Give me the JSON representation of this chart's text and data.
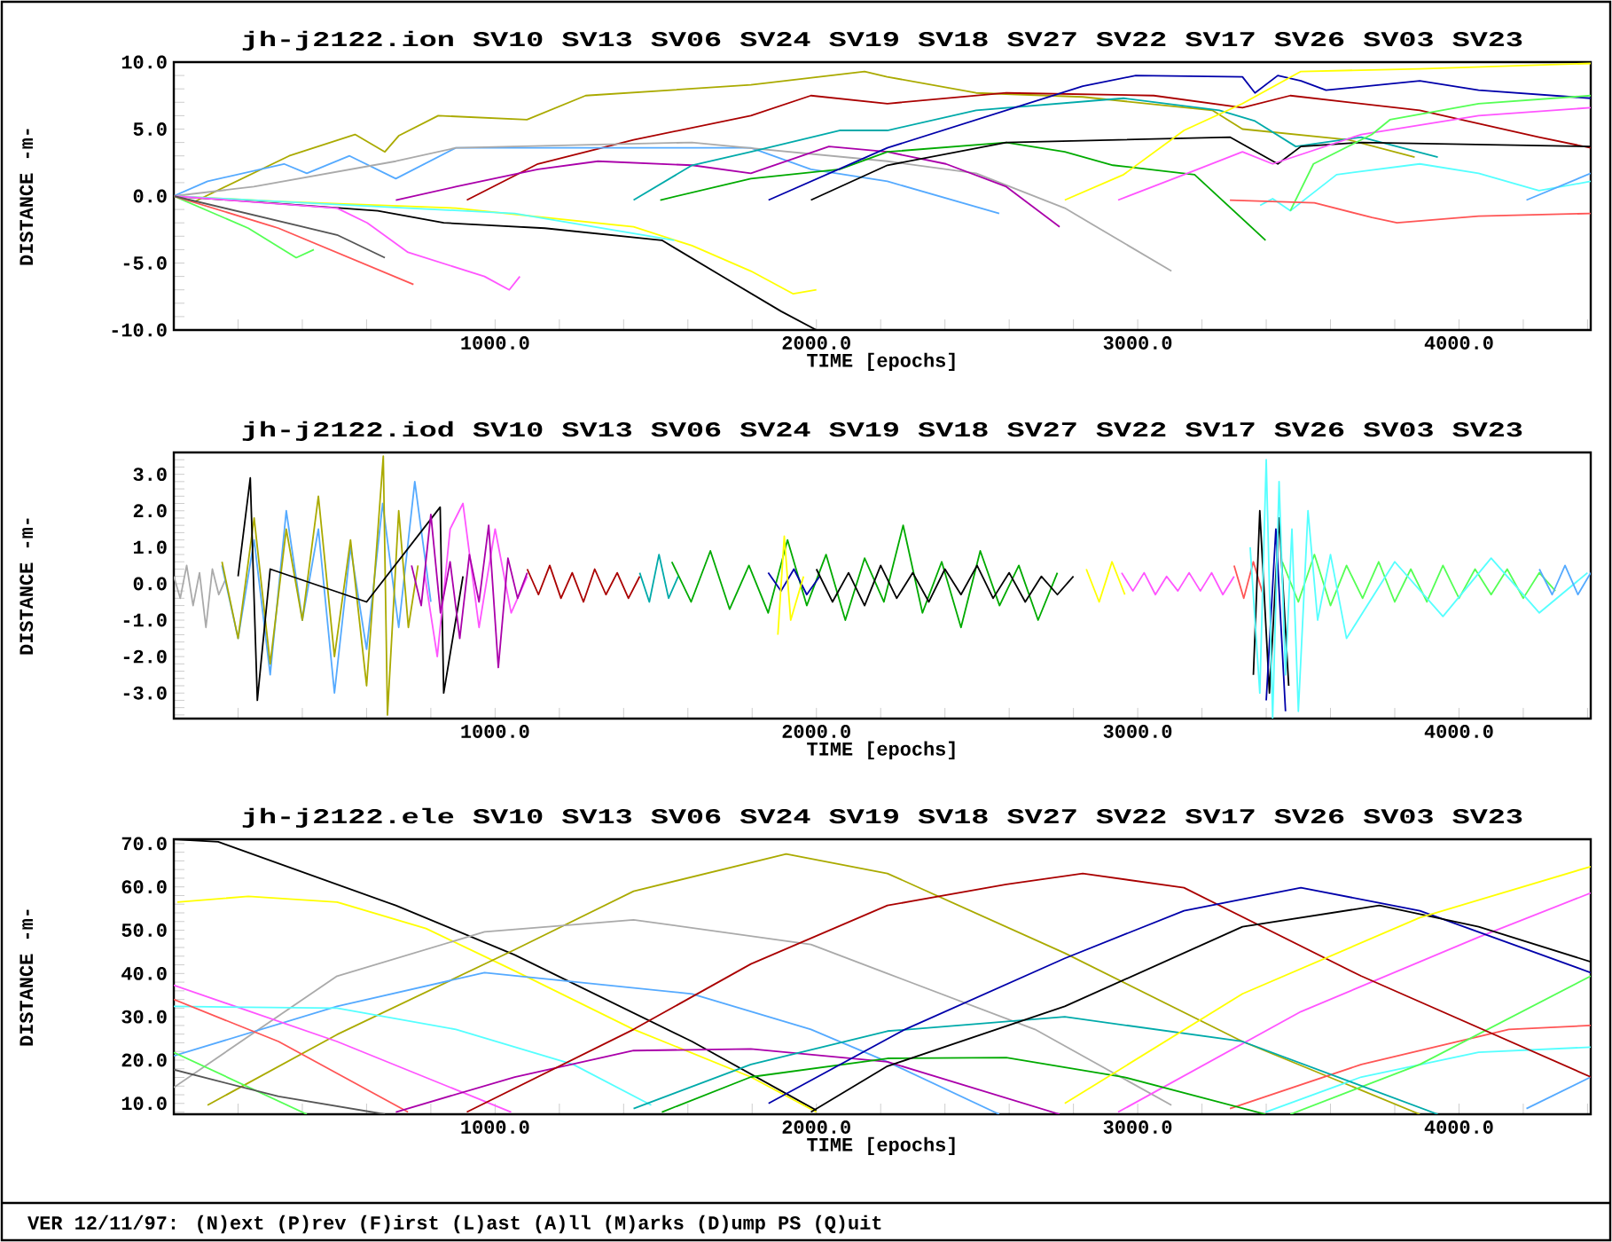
{
  "chart_data": [
    {
      "type": "line",
      "title": "jh-j2122.ion SV10 SV13 SV06 SV24 SV19 SV18 SV27 SV22 SV17 SV26 SV03 SV23",
      "xlabel": "TIME [epochs]",
      "ylabel": "DISTANCE -m-",
      "xlim": [
        0,
        4410
      ],
      "ylim": [
        -10,
        10
      ],
      "xticks": [
        {
          "value": 200,
          "label": null
        },
        {
          "value": 400,
          "label": null
        },
        {
          "value": 600,
          "label": null
        },
        {
          "value": 800,
          "label": null
        },
        {
          "value": 1000,
          "label": "1000.0"
        },
        {
          "value": 1200,
          "label": null
        },
        {
          "value": 1400,
          "label": null
        },
        {
          "value": 1600,
          "label": null
        },
        {
          "value": 1800,
          "label": null
        },
        {
          "value": 2000,
          "label": "2000.0"
        },
        {
          "value": 2200,
          "label": null
        },
        {
          "value": 2400,
          "label": null
        },
        {
          "value": 2600,
          "label": null
        },
        {
          "value": 2800,
          "label": null
        },
        {
          "value": 3000,
          "label": "3000.0"
        },
        {
          "value": 3200,
          "label": null
        },
        {
          "value": 3400,
          "label": null
        },
        {
          "value": 3600,
          "label": null
        },
        {
          "value": 3800,
          "label": null
        },
        {
          "value": 4000,
          "label": "4000.0"
        },
        {
          "value": 4200,
          "label": null
        },
        {
          "value": 4400,
          "label": null
        }
      ],
      "yticks": [
        {
          "value": -10,
          "label": "-10.0"
        },
        {
          "value": -9,
          "label": null
        },
        {
          "value": -8,
          "label": null
        },
        {
          "value": -7,
          "label": null
        },
        {
          "value": -6,
          "label": null
        },
        {
          "value": -5,
          "label": "-5.0"
        },
        {
          "value": -4,
          "label": null
        },
        {
          "value": -3,
          "label": null
        },
        {
          "value": -2,
          "label": null
        },
        {
          "value": -1,
          "label": null
        },
        {
          "value": 0,
          "label": "0.0"
        },
        {
          "value": 1,
          "label": null
        },
        {
          "value": 2,
          "label": null
        },
        {
          "value": 3,
          "label": null
        },
        {
          "value": 4,
          "label": null
        },
        {
          "value": 5,
          "label": "5.0"
        },
        {
          "value": 6,
          "label": null
        },
        {
          "value": 7,
          "label": null
        },
        {
          "value": 8,
          "label": null
        },
        {
          "value": 9,
          "label": null
        },
        {
          "value": 10,
          "label": "10.0"
        }
      ],
      "series": [
        {
          "color": "#aaaa00",
          "x": [
            0,
            66,
            359,
            564,
            657,
            700,
            823,
            1099,
            1282,
            1796,
            2150,
            2220,
            2497,
            2829,
            3232,
            3326,
            3657,
            3862
          ],
          "values": [
            0,
            -0.4,
            3.0,
            4.6,
            3.3,
            4.5,
            6.0,
            5.7,
            7.5,
            8.3,
            9.3,
            8.9,
            7.7,
            7.4,
            6.4,
            5.0,
            4.2,
            2.9
          ]
        },
        {
          "color": "#aa0000",
          "x": [
            912,
            1133,
            1431,
            1796,
            1983,
            2221,
            2591,
            3050,
            3326,
            3475,
            3878,
            4249,
            4410
          ],
          "values": [
            -0.3,
            2.4,
            4.2,
            6.0,
            7.5,
            6.9,
            7.7,
            7.5,
            6.6,
            7.5,
            6.4,
            4.4,
            3.6
          ]
        },
        {
          "color": "#55aaff",
          "x": [
            0,
            105,
            343,
            414,
            547,
            691,
            878,
            1796,
            1983,
            2221,
            2569
          ],
          "values": [
            0,
            1.1,
            2.4,
            1.7,
            3.0,
            1.3,
            3.6,
            3.6,
            2.0,
            1.1,
            -1.3
          ]
        },
        {
          "color": "#aaaaaa",
          "x": [
            0,
            249,
            691,
            878,
            1613,
            2221,
            2497,
            2773,
            3105
          ],
          "values": [
            0,
            0.7,
            2.6,
            3.6,
            4.0,
            2.6,
            1.7,
            -0.9,
            -5.6
          ]
        },
        {
          "color": "#aa00aa",
          "x": [
            691,
            878,
            1133,
            1320,
            1613,
            1796,
            2039,
            2221,
            2403,
            2591,
            2757
          ],
          "values": [
            -0.3,
            0.7,
            2.0,
            2.6,
            2.3,
            1.7,
            3.7,
            3.3,
            2.4,
            0.7,
            -2.3
          ]
        },
        {
          "color": "#00aaaa",
          "x": [
            1431,
            1613,
            1796,
            2072,
            2221,
            2497,
            2956,
            3254,
            3365,
            3492,
            3696,
            3934
          ],
          "values": [
            -0.3,
            2.3,
            3.3,
            4.9,
            4.9,
            6.4,
            7.3,
            6.4,
            5.6,
            3.7,
            4.4,
            2.9
          ]
        },
        {
          "color": "#00aa00",
          "x": [
            1514,
            1796,
            2072,
            2221,
            2591,
            2773,
            2923,
            3177,
            3398
          ],
          "values": [
            -0.3,
            1.3,
            2.0,
            3.3,
            4.0,
            3.3,
            2.3,
            1.6,
            -3.3
          ]
        },
        {
          "color": "#0000aa",
          "x": [
            1851,
            2221,
            2829,
            2994,
            3326,
            3365,
            3436,
            3508,
            3586,
            3878,
            4061,
            4410
          ],
          "values": [
            -0.3,
            3.6,
            8.2,
            9.0,
            8.9,
            7.7,
            9.0,
            8.6,
            7.9,
            8.6,
            7.9,
            7.3
          ]
        },
        {
          "color": "#000000",
          "x": [
            0,
            635,
            840,
            1155,
            1519,
            1707,
            1890,
            2000
          ],
          "values": [
            0,
            -1.1,
            -2.0,
            -2.4,
            -3.3,
            -6.0,
            -8.6,
            -10.0
          ]
        },
        {
          "color": "#000000",
          "x": [
            1983,
            2221,
            2591,
            3287,
            3436,
            3508,
            3696,
            4410
          ],
          "values": [
            -0.3,
            2.3,
            4.0,
            4.4,
            2.4,
            3.7,
            4.0,
            3.7
          ]
        },
        {
          "color": "#ffff00",
          "x": [
            0,
            326,
            878,
            1431,
            1613,
            1796,
            1928,
            2000
          ],
          "values": [
            0,
            -0.4,
            -0.9,
            -2.3,
            -3.7,
            -5.6,
            -7.3,
            -7.0
          ]
        },
        {
          "color": "#ffff00",
          "x": [
            2773,
            2956,
            3144,
            3326,
            3508,
            3878,
            4410
          ],
          "values": [
            -0.3,
            1.6,
            4.9,
            6.9,
            9.3,
            9.5,
            9.9
          ]
        },
        {
          "color": "#55ffff",
          "x": [
            0,
            326,
            1061,
            1558
          ],
          "values": [
            0,
            -0.4,
            -1.3,
            -3.3
          ]
        },
        {
          "color": "#55ffff",
          "x": [
            3381,
            3420,
            3475,
            3619,
            3878,
            4061,
            4249,
            4410
          ],
          "values": [
            -0.7,
            -0.2,
            -1.1,
            1.6,
            2.4,
            1.7,
            0.4,
            1.1
          ]
        },
        {
          "color": "#ff55ff",
          "x": [
            0,
            508,
            602,
            729,
            967,
            1044,
            1077
          ],
          "values": [
            0,
            -0.9,
            -2.0,
            -4.2,
            -6.0,
            -7.0,
            -6.0
          ]
        },
        {
          "color": "#ff55ff",
          "x": [
            2939,
            3144,
            3326,
            3420,
            3696,
            4061,
            4410
          ],
          "values": [
            -0.3,
            1.6,
            3.3,
            2.4,
            4.6,
            6.0,
            6.6
          ]
        },
        {
          "color": "#55ff55",
          "x": [
            0,
            232,
            381,
            436
          ],
          "values": [
            0,
            -2.4,
            -4.6,
            -4.0
          ]
        },
        {
          "color": "#55ff55",
          "x": [
            3475,
            3547,
            3729,
            3785,
            4061,
            4410
          ],
          "values": [
            -1.1,
            2.4,
            4.6,
            5.7,
            6.9,
            7.5
          ]
        },
        {
          "color": "#ff5555",
          "x": [
            0,
            326,
            746
          ],
          "values": [
            0,
            -2.4,
            -6.6
          ]
        },
        {
          "color": "#ff5555",
          "x": [
            3287,
            3550,
            3729,
            3807,
            4061,
            4410
          ],
          "values": [
            -0.3,
            -0.5,
            -1.6,
            -2.0,
            -1.5,
            -1.3
          ]
        },
        {
          "color": "#555555",
          "x": [
            0,
            508,
            657
          ],
          "values": [
            0,
            -2.9,
            -4.6
          ]
        },
        {
          "color": "#55aaff",
          "x": [
            4210,
            4410
          ],
          "values": [
            -0.3,
            1.7
          ]
        }
      ]
    },
    {
      "type": "line",
      "title": "jh-j2122.iod SV10 SV13 SV06 SV24 SV19 SV18 SV27 SV22 SV17 SV26 SV03 SV23",
      "xlabel": "TIME [epochs]",
      "ylabel": "DISTANCE -m-",
      "xlim": [
        0,
        4410
      ],
      "ylim": [
        -3.7,
        3.6
      ],
      "xticks": [
        {
          "value": 200,
          "label": null
        },
        {
          "value": 400,
          "label": null
        },
        {
          "value": 600,
          "label": null
        },
        {
          "value": 800,
          "label": null
        },
        {
          "value": 1000,
          "label": "1000.0"
        },
        {
          "value": 1200,
          "label": null
        },
        {
          "value": 1400,
          "label": null
        },
        {
          "value": 1600,
          "label": null
        },
        {
          "value": 1800,
          "label": null
        },
        {
          "value": 2000,
          "label": "2000.0"
        },
        {
          "value": 2200,
          "label": null
        },
        {
          "value": 2400,
          "label": null
        },
        {
          "value": 2600,
          "label": null
        },
        {
          "value": 2800,
          "label": null
        },
        {
          "value": 3000,
          "label": "3000.0"
        },
        {
          "value": 3200,
          "label": null
        },
        {
          "value": 3400,
          "label": null
        },
        {
          "value": 3600,
          "label": null
        },
        {
          "value": 3800,
          "label": null
        },
        {
          "value": 4000,
          "label": "4000.0"
        },
        {
          "value": 4200,
          "label": null
        },
        {
          "value": 4400,
          "label": null
        }
      ],
      "yticks": [
        {
          "value": -3.6,
          "label": null
        },
        {
          "value": -3.4,
          "label": null
        },
        {
          "value": -3.2,
          "label": null
        },
        {
          "value": -3.0,
          "label": "-3.0"
        },
        {
          "value": -2.8,
          "label": null
        },
        {
          "value": -2.6,
          "label": null
        },
        {
          "value": -2.4,
          "label": null
        },
        {
          "value": -2.2,
          "label": null
        },
        {
          "value": -2.0,
          "label": "-2.0"
        },
        {
          "value": -1.8,
          "label": null
        },
        {
          "value": -1.6,
          "label": null
        },
        {
          "value": -1.4,
          "label": null
        },
        {
          "value": -1.2,
          "label": null
        },
        {
          "value": -1.0,
          "label": "-1.0"
        },
        {
          "value": -0.8,
          "label": null
        },
        {
          "value": -0.6,
          "label": null
        },
        {
          "value": -0.4,
          "label": null
        },
        {
          "value": -0.2,
          "label": null
        },
        {
          "value": 0,
          "label": "0.0"
        },
        {
          "value": 0.2,
          "label": null
        },
        {
          "value": 0.4,
          "label": null
        },
        {
          "value": 0.6,
          "label": null
        },
        {
          "value": 0.8,
          "label": null
        },
        {
          "value": 1.0,
          "label": "1.0"
        },
        {
          "value": 1.2,
          "label": null
        },
        {
          "value": 1.4,
          "label": null
        },
        {
          "value": 1.6,
          "label": null
        },
        {
          "value": 1.8,
          "label": null
        },
        {
          "value": 2.0,
          "label": "2.0"
        },
        {
          "value": 2.2,
          "label": null
        },
        {
          "value": 2.4,
          "label": null
        },
        {
          "value": 2.6,
          "label": null
        },
        {
          "value": 2.8,
          "label": null
        },
        {
          "value": 3.0,
          "label": "3.0"
        },
        {
          "value": 3.2,
          "label": null
        },
        {
          "value": 3.4,
          "label": null
        },
        {
          "value": 3.6,
          "label": null
        }
      ],
      "series": [
        {
          "color": "#aaaaaa",
          "x": [
            0,
            20,
            40,
            60,
            80,
            100,
            120,
            140,
            160
          ],
          "values": [
            0.2,
            -0.4,
            0.5,
            -0.6,
            0.3,
            -1.2,
            0.4,
            -0.3,
            0.1
          ]
        },
        {
          "color": "#55aaff",
          "x": [
            150,
            200,
            250,
            300,
            350,
            400,
            450,
            500,
            550,
            600,
            650,
            700,
            750,
            800
          ],
          "values": [
            0.5,
            -1.5,
            1.2,
            -2.5,
            2.0,
            -1.0,
            1.5,
            -3.0,
            1.0,
            -1.8,
            2.2,
            -1.2,
            2.8,
            -0.5
          ]
        },
        {
          "color": "#aaaa00",
          "x": [
            150,
            200,
            250,
            300,
            350,
            400,
            450,
            500,
            550,
            600,
            652,
            665,
            700,
            730,
            760
          ],
          "values": [
            0.6,
            -1.5,
            1.8,
            -2.2,
            1.5,
            -1.0,
            2.4,
            -2.0,
            1.2,
            -2.8,
            3.5,
            -3.6,
            2.0,
            -1.2,
            0.5
          ]
        },
        {
          "color": "#000000",
          "x": [
            200,
            238,
            260,
            300,
            600,
            829,
            840,
            900
          ],
          "values": [
            0.2,
            2.9,
            -3.2,
            0.4,
            -0.5,
            2.1,
            -3.0,
            0.2
          ]
        },
        {
          "color": "#ff55ff",
          "x": [
            780,
            820,
            860,
            900,
            950,
            1000,
            1050,
            1100
          ],
          "values": [
            0.3,
            -2.0,
            1.5,
            2.2,
            -1.2,
            1.5,
            -0.8,
            0.2
          ]
        },
        {
          "color": "#aa00aa",
          "x": [
            740,
            770,
            800,
            830,
            860,
            890,
            920,
            950,
            980,
            1010,
            1040,
            1070,
            1100
          ],
          "values": [
            0.5,
            -0.6,
            1.9,
            -0.8,
            0.6,
            -1.5,
            0.8,
            -0.5,
            1.6,
            -2.3,
            0.7,
            -0.4,
            0.3
          ]
        },
        {
          "color": "#aa0000",
          "x": [
            1100,
            1135,
            1170,
            1205,
            1240,
            1275,
            1310,
            1345,
            1380,
            1415,
            1450
          ],
          "values": [
            0.4,
            -0.3,
            0.5,
            -0.4,
            0.3,
            -0.5,
            0.4,
            -0.3,
            0.3,
            -0.4,
            0.2
          ]
        },
        {
          "color": "#00aaaa",
          "x": [
            1450,
            1480,
            1510,
            1540,
            1570
          ],
          "values": [
            0.3,
            -0.5,
            0.8,
            -0.4,
            0.2
          ]
        },
        {
          "color": "#00aa00",
          "x": [
            1550,
            1610,
            1670,
            1730,
            1790,
            1850,
            1910,
            1970,
            2030,
            2090,
            2150,
            2210,
            2270,
            2330,
            2390,
            2450,
            2510,
            2570,
            2630,
            2690,
            2750
          ],
          "values": [
            0.6,
            -0.5,
            0.9,
            -0.7,
            0.5,
            -0.8,
            1.2,
            -0.6,
            0.8,
            -1.0,
            0.7,
            -0.5,
            1.6,
            -0.8,
            0.6,
            -1.2,
            0.9,
            -0.6,
            0.5,
            -1.0,
            0.3
          ]
        },
        {
          "color": "#0000aa",
          "x": [
            1850,
            1890,
            1930,
            1970,
            2010
          ],
          "values": [
            0.3,
            -0.2,
            0.4,
            -0.3,
            0.2
          ]
        },
        {
          "color": "#ffff00",
          "x": [
            1880,
            1900,
            1920,
            1960,
            2800,
            2840,
            2880,
            2920,
            2960
          ],
          "values": [
            -1.4,
            1.3,
            -1.0,
            0.2,
            null,
            0.4,
            -0.5,
            0.6,
            -0.3
          ]
        },
        {
          "color": "#000000",
          "x": [
            2000,
            2050,
            2100,
            2150,
            2200,
            2250,
            2300,
            2350,
            2400,
            2450,
            2500,
            2550,
            2600,
            2650,
            2700,
            2750,
            2800
          ],
          "values": [
            0.4,
            -0.5,
            0.3,
            -0.6,
            0.5,
            -0.4,
            0.3,
            -0.5,
            0.4,
            -0.3,
            0.5,
            -0.4,
            0.3,
            -0.5,
            0.2,
            -0.3,
            0.2
          ]
        },
        {
          "color": "#ff55ff",
          "x": [
            2950,
            2985,
            3020,
            3055,
            3090,
            3125,
            3160,
            3195,
            3230,
            3265,
            3300
          ],
          "values": [
            0.3,
            -0.2,
            0.3,
            -0.3,
            0.2,
            -0.2,
            0.3,
            -0.2,
            0.3,
            -0.3,
            0.2
          ]
        },
        {
          "color": "#ff5555",
          "x": [
            3300,
            3330,
            3360,
            3390
          ],
          "values": [
            0.5,
            -0.4,
            0.6,
            -0.3
          ]
        },
        {
          "color": "#55ff55",
          "x": [
            3450,
            3500,
            3550,
            3600,
            3650,
            3700,
            3750,
            3800,
            3850,
            3900,
            3950,
            4000,
            4050,
            4100,
            4150,
            4200,
            4250,
            4300
          ],
          "values": [
            0.6,
            -0.5,
            0.8,
            -0.6,
            0.5,
            -0.4,
            0.6,
            -0.5,
            0.4,
            -0.5,
            0.5,
            -0.4,
            0.4,
            -0.3,
            0.4,
            -0.4,
            0.3,
            -0.2
          ]
        },
        {
          "color": "#000000",
          "x": [
            3360,
            3380,
            3410,
            3440,
            3470
          ],
          "values": [
            -2.5,
            2.0,
            -3.0,
            1.8,
            -2.8
          ]
        },
        {
          "color": "#0000aa",
          "x": [
            3400,
            3430,
            3460
          ],
          "values": [
            -3.2,
            1.5,
            -3.5
          ]
        },
        {
          "color": "#55ffff",
          "x": [
            3350,
            3380,
            3400,
            3420,
            3440,
            3460,
            3480,
            3500,
            3530,
            3560,
            3600,
            3650,
            3800,
            3950,
            4100,
            4250,
            4400
          ],
          "values": [
            1.0,
            -3.0,
            3.4,
            -3.7,
            2.8,
            -2.5,
            1.5,
            -3.5,
            2.0,
            -1.0,
            0.8,
            -1.5,
            0.6,
            -0.9,
            0.7,
            -0.8,
            0.3
          ]
        },
        {
          "color": "#55aaff",
          "x": [
            4250,
            4290,
            4330,
            4370,
            4410
          ],
          "values": [
            0.4,
            -0.3,
            0.5,
            -0.3,
            0.3
          ]
        }
      ]
    },
    {
      "type": "line",
      "title": "jh-j2122.ele SV10 SV13 SV06 SV24 SV19 SV18 SV27 SV22 SV17 SV26 SV03 SV23",
      "xlabel": "TIME [epochs]",
      "ylabel": "DISTANCE -m-",
      "xlim": [
        0,
        4410
      ],
      "ylim": [
        7.5,
        71
      ],
      "xticks": [
        {
          "value": 200,
          "label": null
        },
        {
          "value": 400,
          "label": null
        },
        {
          "value": 600,
          "label": null
        },
        {
          "value": 800,
          "label": null
        },
        {
          "value": 1000,
          "label": "1000.0"
        },
        {
          "value": 1200,
          "label": null
        },
        {
          "value": 1400,
          "label": null
        },
        {
          "value": 1600,
          "label": null
        },
        {
          "value": 1800,
          "label": null
        },
        {
          "value": 2000,
          "label": "2000.0"
        },
        {
          "value": 2200,
          "label": null
        },
        {
          "value": 2400,
          "label": null
        },
        {
          "value": 2600,
          "label": null
        },
        {
          "value": 2800,
          "label": null
        },
        {
          "value": 3000,
          "label": "3000.0"
        },
        {
          "value": 3200,
          "label": null
        },
        {
          "value": 3400,
          "label": null
        },
        {
          "value": 3600,
          "label": null
        },
        {
          "value": 3800,
          "label": null
        },
        {
          "value": 4000,
          "label": "4000.0"
        },
        {
          "value": 4200,
          "label": null
        },
        {
          "value": 4400,
          "label": null
        }
      ],
      "yticks": [
        {
          "value": 8,
          "label": null
        },
        {
          "value": 10,
          "label": "10.0"
        },
        {
          "value": 12,
          "label": null
        },
        {
          "value": 14,
          "label": null
        },
        {
          "value": 16,
          "label": null
        },
        {
          "value": 18,
          "label": null
        },
        {
          "value": 20,
          "label": "20.0"
        },
        {
          "value": 22,
          "label": null
        },
        {
          "value": 24,
          "label": null
        },
        {
          "value": 26,
          "label": null
        },
        {
          "value": 28,
          "label": null
        },
        {
          "value": 30,
          "label": "30.0"
        },
        {
          "value": 32,
          "label": null
        },
        {
          "value": 34,
          "label": null
        },
        {
          "value": 36,
          "label": null
        },
        {
          "value": 38,
          "label": null
        },
        {
          "value": 40,
          "label": "40.0"
        },
        {
          "value": 42,
          "label": null
        },
        {
          "value": 44,
          "label": null
        },
        {
          "value": 46,
          "label": null
        },
        {
          "value": 48,
          "label": null
        },
        {
          "value": 50,
          "label": "50.0"
        },
        {
          "value": 52,
          "label": null
        },
        {
          "value": 54,
          "label": null
        },
        {
          "value": 56,
          "label": null
        },
        {
          "value": 58,
          "label": null
        },
        {
          "value": 60,
          "label": "60.0"
        },
        {
          "value": 62,
          "label": null
        },
        {
          "value": 64,
          "label": null
        },
        {
          "value": 66,
          "label": null
        },
        {
          "value": 68,
          "label": null
        },
        {
          "value": 70,
          "label": "70.0"
        }
      ],
      "annotations": [
        "VER 12/11/97: (N)ext (P)rev (F)irst (L)ast (A)ll (M)arks (D)ump PS (Q)uit"
      ],
      "series": [
        {
          "color": "#000000",
          "x": [
            0,
            138,
            691,
            1061,
            1613,
            2000
          ],
          "values": [
            71,
            70.4,
            55.7,
            44.3,
            24.3,
            8.4
          ]
        },
        {
          "color": "#ffff00",
          "x": [
            11,
            232,
            508,
            785,
            1061,
            1431,
            1796,
            2000
          ],
          "values": [
            56.5,
            57.8,
            56.5,
            50.4,
            40.6,
            27.1,
            16.1,
            8
          ]
        },
        {
          "color": "#aaaa00",
          "x": [
            105,
            508,
            1061,
            1431,
            1906,
            2221,
            2773,
            3326,
            3878
          ],
          "values": [
            9.6,
            25.9,
            45.5,
            59.0,
            67.6,
            63.1,
            44.7,
            24.3,
            7.5
          ]
        },
        {
          "color": "#aaaaaa",
          "x": [
            0,
            508,
            967,
            1431,
            1983,
            2221,
            2680,
            3105
          ],
          "values": [
            13.7,
            39.4,
            49.6,
            52.4,
            46.7,
            40,
            27.1,
            9.6
          ]
        },
        {
          "color": "#55aaff",
          "x": [
            0,
            508,
            967,
            1613,
            1983,
            2221,
            2569
          ],
          "values": [
            21,
            32.4,
            40.2,
            35.3,
            27.1,
            19.6,
            7.5
          ]
        },
        {
          "color": "#55aaff",
          "x": [
            4210,
            4410
          ],
          "values": [
            8.8,
            16.1
          ]
        },
        {
          "color": "#ff55ff",
          "x": [
            0,
            508,
            1050
          ],
          "values": [
            37.3,
            24.3,
            8
          ]
        },
        {
          "color": "#ff55ff",
          "x": [
            2939,
            3508,
            4061,
            4410
          ],
          "values": [
            8,
            31.2,
            48.4,
            58.6
          ]
        },
        {
          "color": "#55ffff",
          "x": [
            0,
            508,
            878,
            1243,
            1486
          ],
          "values": [
            32.4,
            32.0,
            27.1,
            19.0,
            9.6
          ]
        },
        {
          "color": "#55ffff",
          "x": [
            3398,
            3696,
            4061,
            4410
          ],
          "values": [
            8,
            16.1,
            21.8,
            23
          ]
        },
        {
          "color": "#ff5555",
          "x": [
            0,
            326,
            729
          ],
          "values": [
            34,
            24.3,
            8
          ]
        },
        {
          "color": "#ff5555",
          "x": [
            3287,
            3696,
            4155,
            4410
          ],
          "values": [
            8.8,
            19,
            27.1,
            28
          ]
        },
        {
          "color": "#55ff55",
          "x": [
            0,
            414
          ],
          "values": [
            21.8,
            7.5
          ]
        },
        {
          "color": "#55ff55",
          "x": [
            3475,
            3878,
            4410
          ],
          "values": [
            7.5,
            19,
            39.4
          ]
        },
        {
          "color": "#555555",
          "x": [
            0,
            326,
            657
          ],
          "values": [
            17.8,
            11.6,
            7.5
          ]
        },
        {
          "color": "#aa00aa",
          "x": [
            691,
            1061,
            1431,
            1796,
            2221,
            2757
          ],
          "values": [
            8,
            16.1,
            22.2,
            22.6,
            19.6,
            7.5
          ]
        },
        {
          "color": "#aa0000",
          "x": [
            912,
            1431,
            1796,
            2221,
            2591,
            2829,
            3144,
            3696,
            4410
          ],
          "values": [
            8,
            27.1,
            42.2,
            55.7,
            60.6,
            63.1,
            59.8,
            39.4,
            16.1
          ]
        },
        {
          "color": "#00aaaa",
          "x": [
            1431,
            1796,
            2221,
            2773,
            3326,
            3934
          ],
          "values": [
            8.8,
            19,
            26.7,
            30,
            24.3,
            7.5
          ]
        },
        {
          "color": "#00aa00",
          "x": [
            1519,
            1796,
            2221,
            2591,
            2956,
            3398
          ],
          "values": [
            8,
            16.1,
            20.4,
            20.6,
            16.1,
            7.5
          ]
        },
        {
          "color": "#0000aa",
          "x": [
            1851,
            2276,
            2773,
            3144,
            3508,
            3878,
            4410
          ],
          "values": [
            10,
            27.1,
            43.5,
            54.5,
            59.8,
            54.5,
            40.2
          ]
        },
        {
          "color": "#000000",
          "x": [
            1983,
            2221,
            2773,
            3326,
            3752,
            4061,
            4410
          ],
          "values": [
            8,
            18.6,
            32.4,
            50.8,
            55.7,
            50.8,
            42.7
          ]
        },
        {
          "color": "#ffff00",
          "x": [
            2773,
            3326,
            3878,
            4410
          ],
          "values": [
            10,
            35.3,
            52.9,
            64.7
          ]
        }
      ]
    }
  ]
}
